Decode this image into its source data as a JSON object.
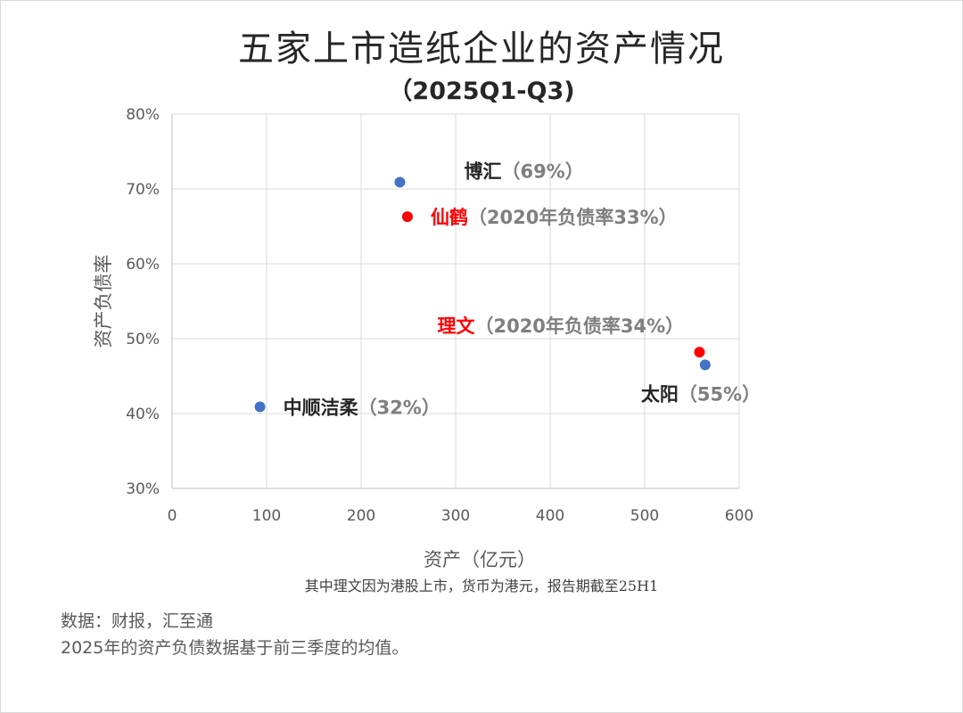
{
  "chart_data": {
    "type": "scatter",
    "title": "五家上市造纸企业的资产情况",
    "subtitle": "（2025Q1-Q3)",
    "xlabel": "资产（亿元）",
    "ylabel": "资产负债率",
    "xlim": [
      0,
      600
    ],
    "ylim": [
      0.3,
      0.8
    ],
    "x_ticks": [
      0,
      100,
      200,
      300,
      400,
      500,
      600
    ],
    "y_ticks": [
      0.3,
      0.4,
      0.5,
      0.6,
      0.7,
      0.8
    ],
    "x_tick_labels": [
      "0",
      "100",
      "200",
      "300",
      "400",
      "500",
      "600"
    ],
    "y_tick_labels": [
      "30%",
      "40%",
      "50%",
      "60%",
      "70%",
      "80%"
    ],
    "grid": true,
    "points": [
      {
        "name": "博汇",
        "note": "（69%）",
        "x": 241,
        "y": 0.709,
        "color": "#4472C4",
        "label_color": "#262626",
        "label_side": "right-up"
      },
      {
        "name": "仙鹤",
        "note": "（2020年负债率33%）",
        "x": 249,
        "y": 0.663,
        "color": "#FF0000",
        "label_color": "#FF0000",
        "label_side": "right"
      },
      {
        "name": "理文",
        "note": "（2020年负债率34%）",
        "x": 558,
        "y": 0.482,
        "color": "#FF0000",
        "label_color": "#FF0000",
        "label_side": "upper-left"
      },
      {
        "name": "太阳",
        "note": "（55%）",
        "x": 564,
        "y": 0.465,
        "color": "#4472C4",
        "label_color": "#262626",
        "label_side": "below"
      },
      {
        "name": "中顺洁柔",
        "note": "（32%）",
        "x": 93,
        "y": 0.409,
        "color": "#4472C4",
        "label_color": "#262626",
        "label_side": "right"
      }
    ]
  },
  "footnote": "其中理文因为港股上市，货币为港元，报告期截至25H1",
  "source": {
    "line1": "数据：财报，汇至通",
    "line2": "2025年的资产负债数据基于前三季度的均值。"
  }
}
